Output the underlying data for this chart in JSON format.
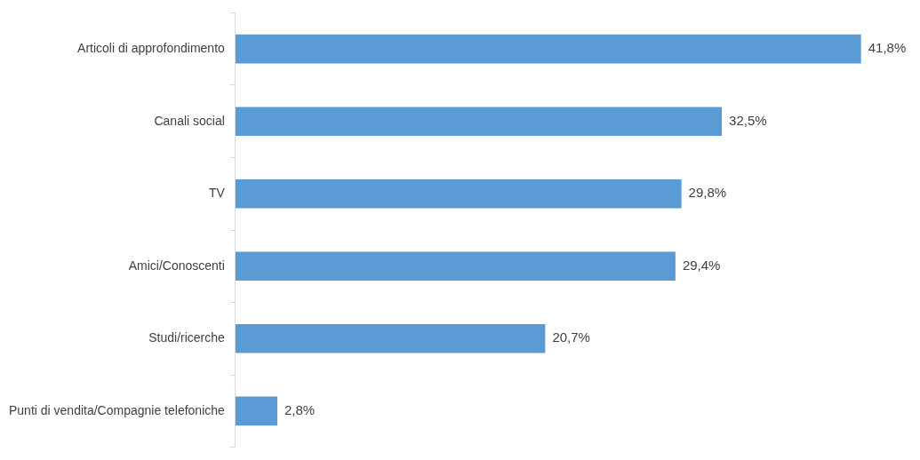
{
  "chart_data": {
    "type": "bar",
    "orientation": "horizontal",
    "categories": [
      "Articoli di approfondimento",
      "Canali social",
      "TV",
      "Amici/Conoscenti",
      "Studi/ricerche",
      "Punti di vendita/Compagnie telefoniche"
    ],
    "values": [
      41.8,
      32.5,
      29.8,
      29.4,
      20.7,
      2.8
    ],
    "value_labels": [
      "41,8%",
      "32,5%",
      "29,8%",
      "29,4%",
      "20,7%",
      "2,8%"
    ],
    "color": "#5b9bd5",
    "legend": false
  }
}
